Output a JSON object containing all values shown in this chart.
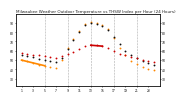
{
  "title": "Milwaukee Weather Outdoor Temperature vs THSW Index per Hour (24 Hours)",
  "title_fontsize": 3.0,
  "background_color": "#ffffff",
  "plot_bg_color": "#ffffff",
  "grid_color": "#aaaaaa",
  "x_ticks": [
    1,
    3,
    5,
    7,
    9,
    11,
    13,
    15,
    17,
    19,
    21,
    23
  ],
  "x_tick_labels": [
    "1",
    "3",
    "5",
    "7",
    "9",
    "11",
    "13",
    "15",
    "17",
    "19",
    "21",
    "23"
  ],
  "y_left_ticks": [
    30,
    40,
    50,
    60,
    70,
    80,
    90
  ],
  "y_right_ticks": [
    30,
    40,
    50,
    60,
    70,
    80,
    90
  ],
  "ylim": [
    22,
    100
  ],
  "xlim": [
    0,
    25
  ],
  "temp_color": "#cc0000",
  "thsw_color": "#ff8800",
  "black_color": "#111111",
  "hours_temp": [
    1,
    2,
    3,
    4,
    5,
    6,
    7,
    8,
    9,
    10,
    11,
    12,
    13,
    14,
    15,
    16,
    17,
    18,
    19,
    20,
    21,
    22,
    23,
    24
  ],
  "temp_values": [
    58,
    57,
    56,
    55,
    54,
    53,
    52,
    54,
    57,
    59,
    62,
    65,
    66,
    66,
    65,
    63,
    60,
    57,
    55,
    53,
    52,
    50,
    49,
    48
  ],
  "thsw_values": [
    50,
    49,
    47,
    45,
    44,
    43,
    42,
    50,
    63,
    73,
    81,
    89,
    91,
    90,
    88,
    83,
    74,
    63,
    55,
    49,
    46,
    43,
    41,
    39
  ],
  "black_values": [
    55,
    54,
    53,
    51,
    50,
    49,
    48,
    52,
    62,
    72,
    80,
    88,
    90,
    89,
    87,
    82,
    75,
    67,
    60,
    55,
    52,
    49,
    47,
    45
  ],
  "marker_size": 1.8,
  "dashed_vlines": [
    5,
    9,
    13,
    17,
    21
  ],
  "orange_line_x": [
    1,
    5
  ],
  "orange_line_y": [
    50,
    44
  ],
  "red_line_x": [
    13,
    15
  ],
  "red_line_y": [
    66,
    65
  ],
  "red_line_lw": 1.2,
  "orange_line_lw": 1.2
}
